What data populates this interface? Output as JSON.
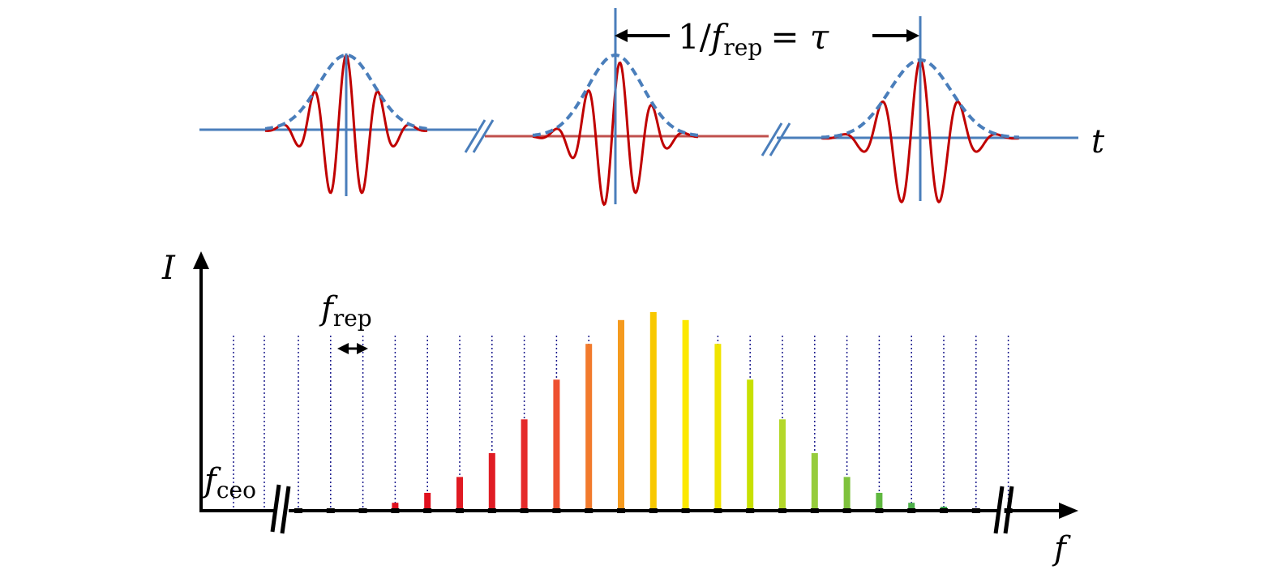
{
  "time_domain": {
    "axis_label": "t",
    "period_label": {
      "numerator": "1/",
      "f": "f",
      "sub": "rep",
      "equals": "= ",
      "tau": "τ"
    },
    "colors": {
      "carrier": "#c00000",
      "envelope": "#4a7ebb",
      "axis": "#4a7ebb"
    },
    "pulse_count": 3
  },
  "frequency_domain": {
    "y_label": "I",
    "x_label": "f",
    "spacing_label": {
      "f": "f",
      "sub": "rep"
    },
    "offset_label": {
      "f": "f",
      "sub": "ceo"
    },
    "colors": {
      "axis": "#000000",
      "grid": "#1a1a8c"
    },
    "comb_relative_heights": [
      0.0,
      0.0,
      0.01,
      0.04,
      0.09,
      0.17,
      0.29,
      0.46,
      0.66,
      0.84,
      0.96,
      1.0,
      0.96,
      0.84,
      0.66,
      0.46,
      0.29,
      0.17,
      0.09,
      0.04,
      0.02,
      0.0,
      0.0
    ],
    "comb_colors": [
      "#e0101e",
      "#e0101e",
      "#e0101e",
      "#e0101e",
      "#e0101e",
      "#e01a22",
      "#e01c24",
      "#e52a2a",
      "#ee5030",
      "#f27a2c",
      "#f59a1e",
      "#f8c800",
      "#fce800",
      "#f0e400",
      "#c8e000",
      "#b4d82a",
      "#96cc3c",
      "#7ec23c",
      "#60b840",
      "#4eb04a",
      "#3aa84a",
      "#3aa84a",
      "#3aa84a"
    ]
  }
}
